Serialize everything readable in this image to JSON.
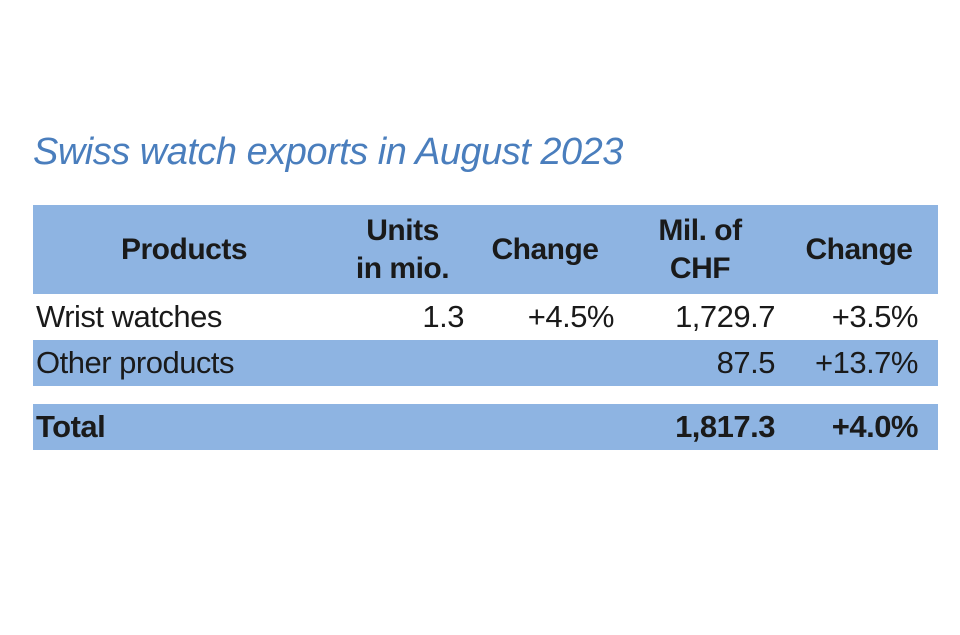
{
  "title": "Swiss watch exports in August 2023",
  "colors": {
    "band_blue": "#8eb4e2",
    "title_blue": "#4a7ebd",
    "text_black": "#1a1a1a",
    "background": "#ffffff"
  },
  "table": {
    "header": {
      "products": "Products",
      "units_line1": "Units",
      "units_line2": "in mio.",
      "change_units": "Change",
      "chf_line1": "Mil. of",
      "chf_line2": "CHF",
      "change_chf": "Change"
    },
    "rows": [
      {
        "product": "Wrist watches",
        "units": "1.3",
        "units_change": "+4.5%",
        "chf": "1,729.7",
        "chf_change": "+3.5%"
      },
      {
        "product": "Other products",
        "units": "",
        "units_change": "",
        "chf": "87.5",
        "chf_change": "+13.7%"
      }
    ],
    "total": {
      "label": "Total",
      "units": "",
      "units_change": "",
      "chf": "1,817.3",
      "chf_change": "+4.0%"
    }
  }
}
